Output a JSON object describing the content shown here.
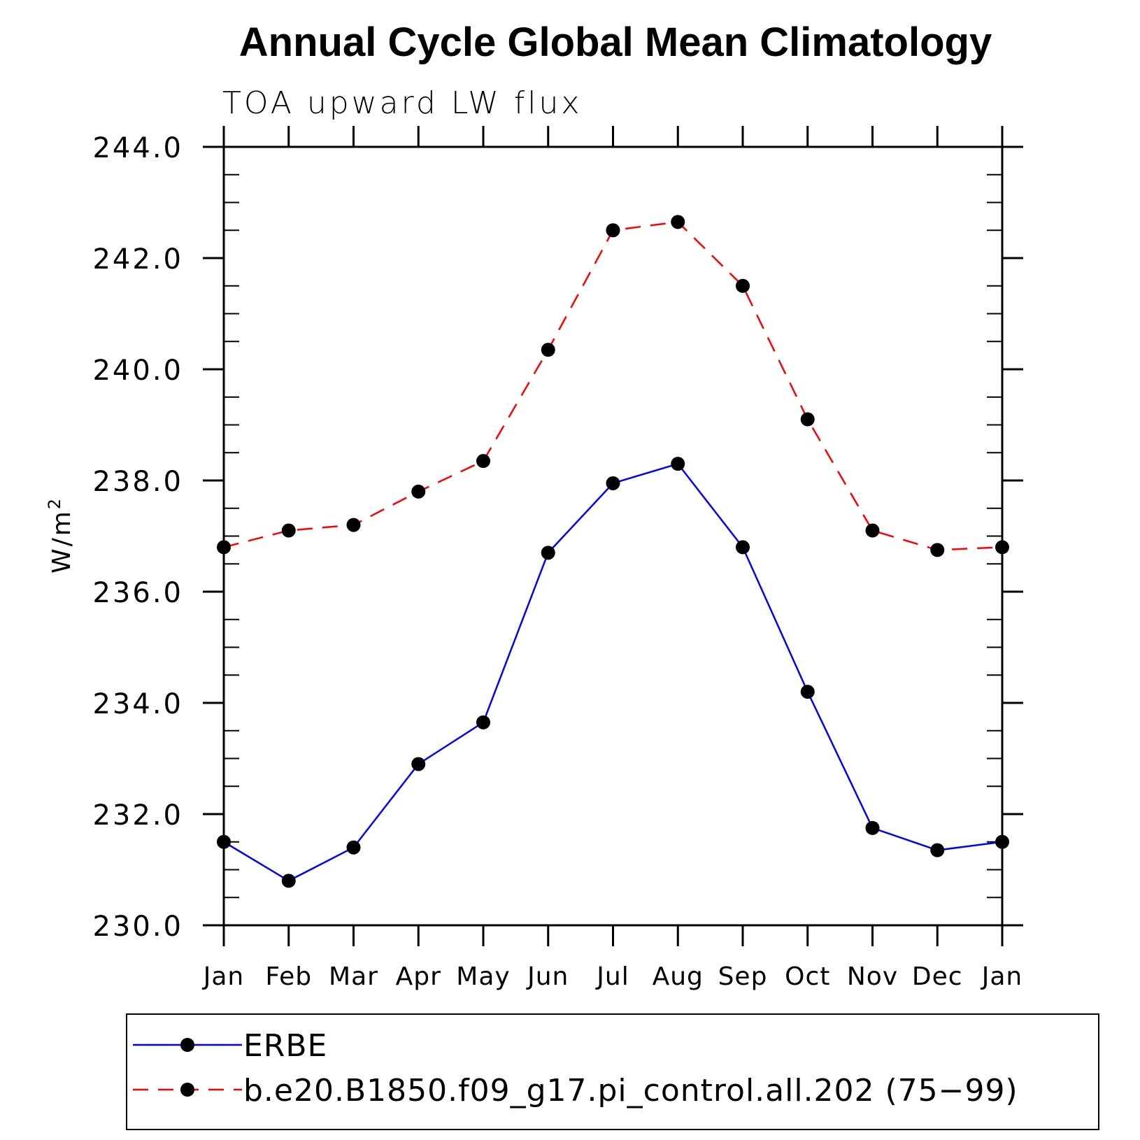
{
  "chart_data": {
    "type": "line",
    "title": "Annual Cycle Global Mean Climatology",
    "subtitle": "TOA upward LW flux",
    "ylabel_base": "W/m",
    "ylabel_sup": "2",
    "categories": [
      "Jan",
      "Feb",
      "Mar",
      "Apr",
      "May",
      "Jun",
      "Jul",
      "Aug",
      "Sep",
      "Oct",
      "Nov",
      "Dec",
      "Jan"
    ],
    "ylim": [
      230.0,
      244.0
    ],
    "yticks": [
      "230.0",
      "232.0",
      "234.0",
      "236.0",
      "238.0",
      "240.0",
      "242.0",
      "244.0"
    ],
    "series": [
      {
        "name": "ERBE",
        "color": "#0000ff",
        "style": "solid",
        "values": [
          231.5,
          230.8,
          231.4,
          232.9,
          233.65,
          236.7,
          237.95,
          238.3,
          236.8,
          234.2,
          231.75,
          231.35,
          231.5
        ]
      },
      {
        "name": "b.e20.B1850.f09_g17.pi_control.all.202 (75−99)",
        "color": "#ff0000",
        "style": "dashed",
        "values": [
          236.8,
          237.1,
          237.2,
          237.8,
          238.35,
          240.35,
          242.5,
          242.65,
          241.5,
          239.1,
          237.1,
          236.75,
          236.8
        ]
      }
    ],
    "legend_position": "bottom"
  }
}
